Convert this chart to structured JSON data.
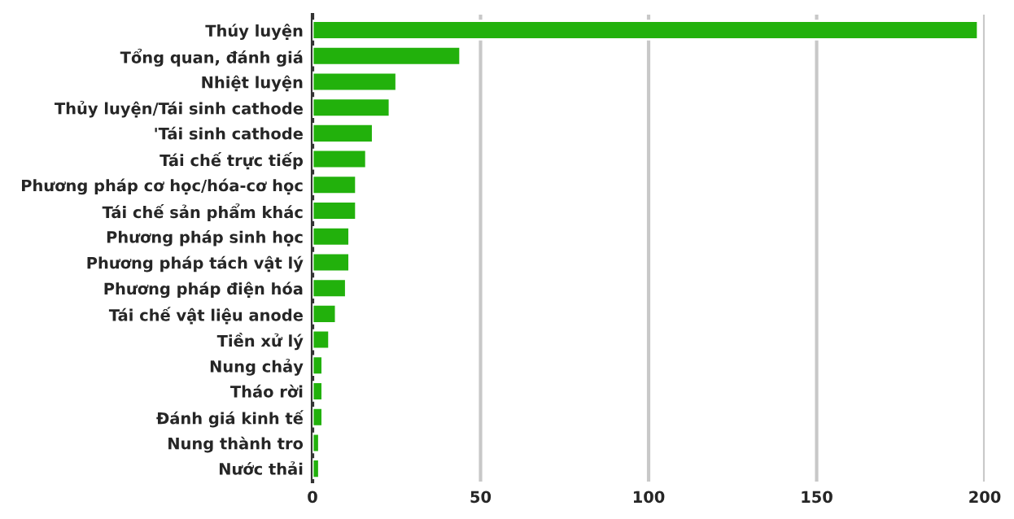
{
  "chart_data": {
    "type": "bar",
    "orientation": "horizontal",
    "categories": [
      "Thúy luyện",
      "Tổng quan, đánh giá",
      "Nhiệt luyện",
      "Thủy luyện/Tái sinh cathode",
      "'Tái sinh cathode",
      "Tái chế trực tiếp",
      "Phương pháp cơ học/hóa-cơ học",
      "Tái chế sản phẩm khác",
      "Phương pháp sinh học",
      "Phương pháp tách vật lý",
      "Phương pháp điện hóa",
      "Tái chế vật liệu anode",
      "Tiền xử lý",
      "Nung chảy",
      "Tháo rời",
      "Đánh giá kinh tế",
      "Nung thành tro",
      "Nước thải"
    ],
    "values": [
      198,
      44,
      25,
      23,
      18,
      16,
      13,
      13,
      11,
      11,
      10,
      7,
      5,
      3,
      3,
      3,
      2,
      2
    ],
    "color": "#22b10c",
    "xlim": [
      0,
      200
    ],
    "xticks": [
      0,
      50,
      100,
      150,
      200
    ],
    "grid": "x"
  }
}
